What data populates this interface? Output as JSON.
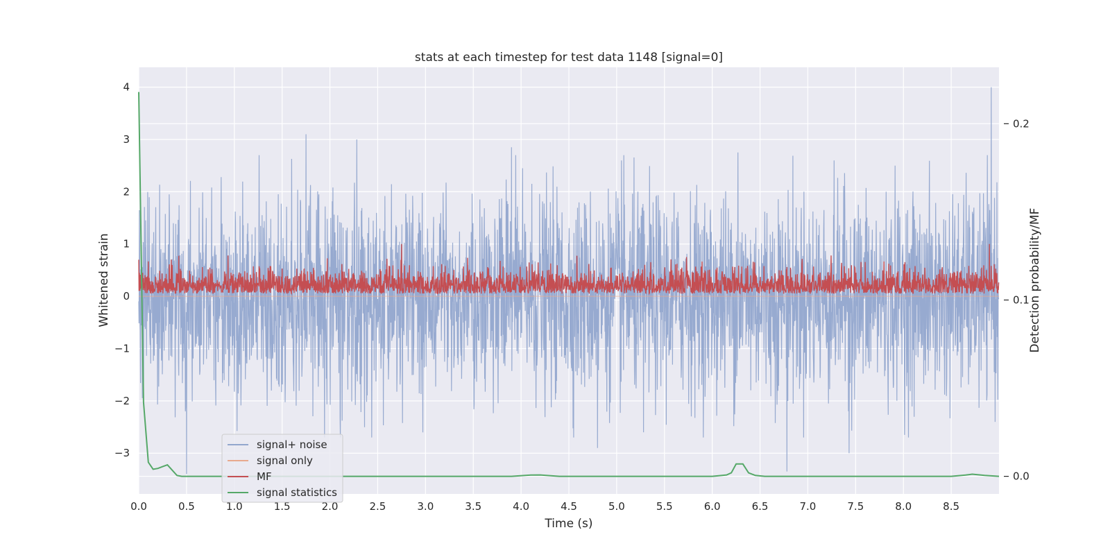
{
  "chart_data": {
    "type": "line",
    "title": "stats at each timestep for test data 1148 [signal=0]",
    "xlabel": "Time (s)",
    "ylabel": "Whitened strain",
    "y2label": "Detection probability/MF",
    "xlim": [
      0.0,
      9.0
    ],
    "ylim": [
      -3.78,
      4.38
    ],
    "y2lim": [
      -0.01,
      0.232
    ],
    "x_ticks": [
      0.0,
      0.5,
      1.0,
      1.5,
      2.0,
      2.5,
      3.0,
      3.5,
      4.0,
      4.5,
      5.0,
      5.5,
      6.0,
      6.5,
      7.0,
      7.5,
      8.0,
      8.5
    ],
    "x_tick_labels": [
      "0.0",
      "0.5",
      "1.0",
      "1.5",
      "2.0",
      "2.5",
      "3.0",
      "3.5",
      "4.0",
      "4.5",
      "5.0",
      "5.5",
      "6.0",
      "6.5",
      "7.0",
      "7.5",
      "8.0",
      "8.5"
    ],
    "y_ticks": [
      4,
      3,
      2,
      1,
      0,
      -1,
      -2,
      -3
    ],
    "y_tick_labels": [
      "4",
      "3",
      "2",
      "1",
      "0",
      "−1",
      "−2",
      "−3"
    ],
    "y2_ticks": [
      0.2,
      0.1,
      0.0
    ],
    "y2_tick_labels": [
      "0.2",
      "0.1",
      "0.0"
    ],
    "grid": true,
    "legend_position": "lower-left",
    "series": [
      {
        "name": "signal+ noise",
        "axis": "left",
        "color": "#92a6cd",
        "sample_rate_hz": 320,
        "noise_summary": {
          "mean": 0,
          "std": 1.0,
          "max": 4.0,
          "min": -3.4
        },
        "peaks": [
          [
            1.75,
            3.1
          ],
          [
            2.28,
            3.0
          ],
          [
            3.9,
            2.85
          ],
          [
            5.05,
            2.6
          ],
          [
            6.27,
            2.75
          ],
          [
            8.92,
            4.0
          ]
        ],
        "troughs": [
          [
            0.5,
            -3.4
          ],
          [
            4.8,
            -2.9
          ],
          [
            6.78,
            -3.35
          ],
          [
            7.43,
            -3.0
          ],
          [
            5.28,
            -2.6
          ]
        ]
      },
      {
        "name": "signal only",
        "axis": "left",
        "color": "#e8a98d",
        "values_summary": "flat at 0.0"
      },
      {
        "name": "MF",
        "axis": "left",
        "color": "#c44e52",
        "sample_rate_hz": 320,
        "values_summary": {
          "min": 0.0,
          "typical": 0.3,
          "max": 1.0
        },
        "peaks": [
          [
            0.0,
            0.7
          ],
          [
            2.75,
            1.0
          ],
          [
            8.9,
            1.0
          ]
        ]
      },
      {
        "name": "signal statistics",
        "axis": "right",
        "color": "#55a868",
        "x": [
          0.0,
          0.05,
          0.1,
          0.15,
          0.2,
          0.25,
          0.3,
          0.35,
          0.4,
          0.45,
          0.5,
          1.0,
          2.0,
          3.0,
          3.9,
          4.1,
          4.2,
          4.4,
          5.0,
          6.0,
          6.15,
          6.2,
          6.25,
          6.32,
          6.38,
          6.45,
          6.55,
          7.0,
          8.0,
          8.5,
          8.65,
          8.72,
          8.85,
          9.0
        ],
        "y": [
          0.218,
          0.042,
          0.008,
          0.004,
          0.0045,
          0.0055,
          0.0065,
          0.0035,
          0.0005,
          0.0,
          0.0,
          0.0,
          0.0,
          0.0,
          0.0,
          0.0007,
          0.0008,
          0.0,
          0.0,
          0.0,
          0.0008,
          0.002,
          0.007,
          0.007,
          0.002,
          0.0005,
          0.0,
          0.0,
          0.0,
          0.0,
          0.0007,
          0.0012,
          0.0005,
          0.0
        ]
      }
    ]
  }
}
